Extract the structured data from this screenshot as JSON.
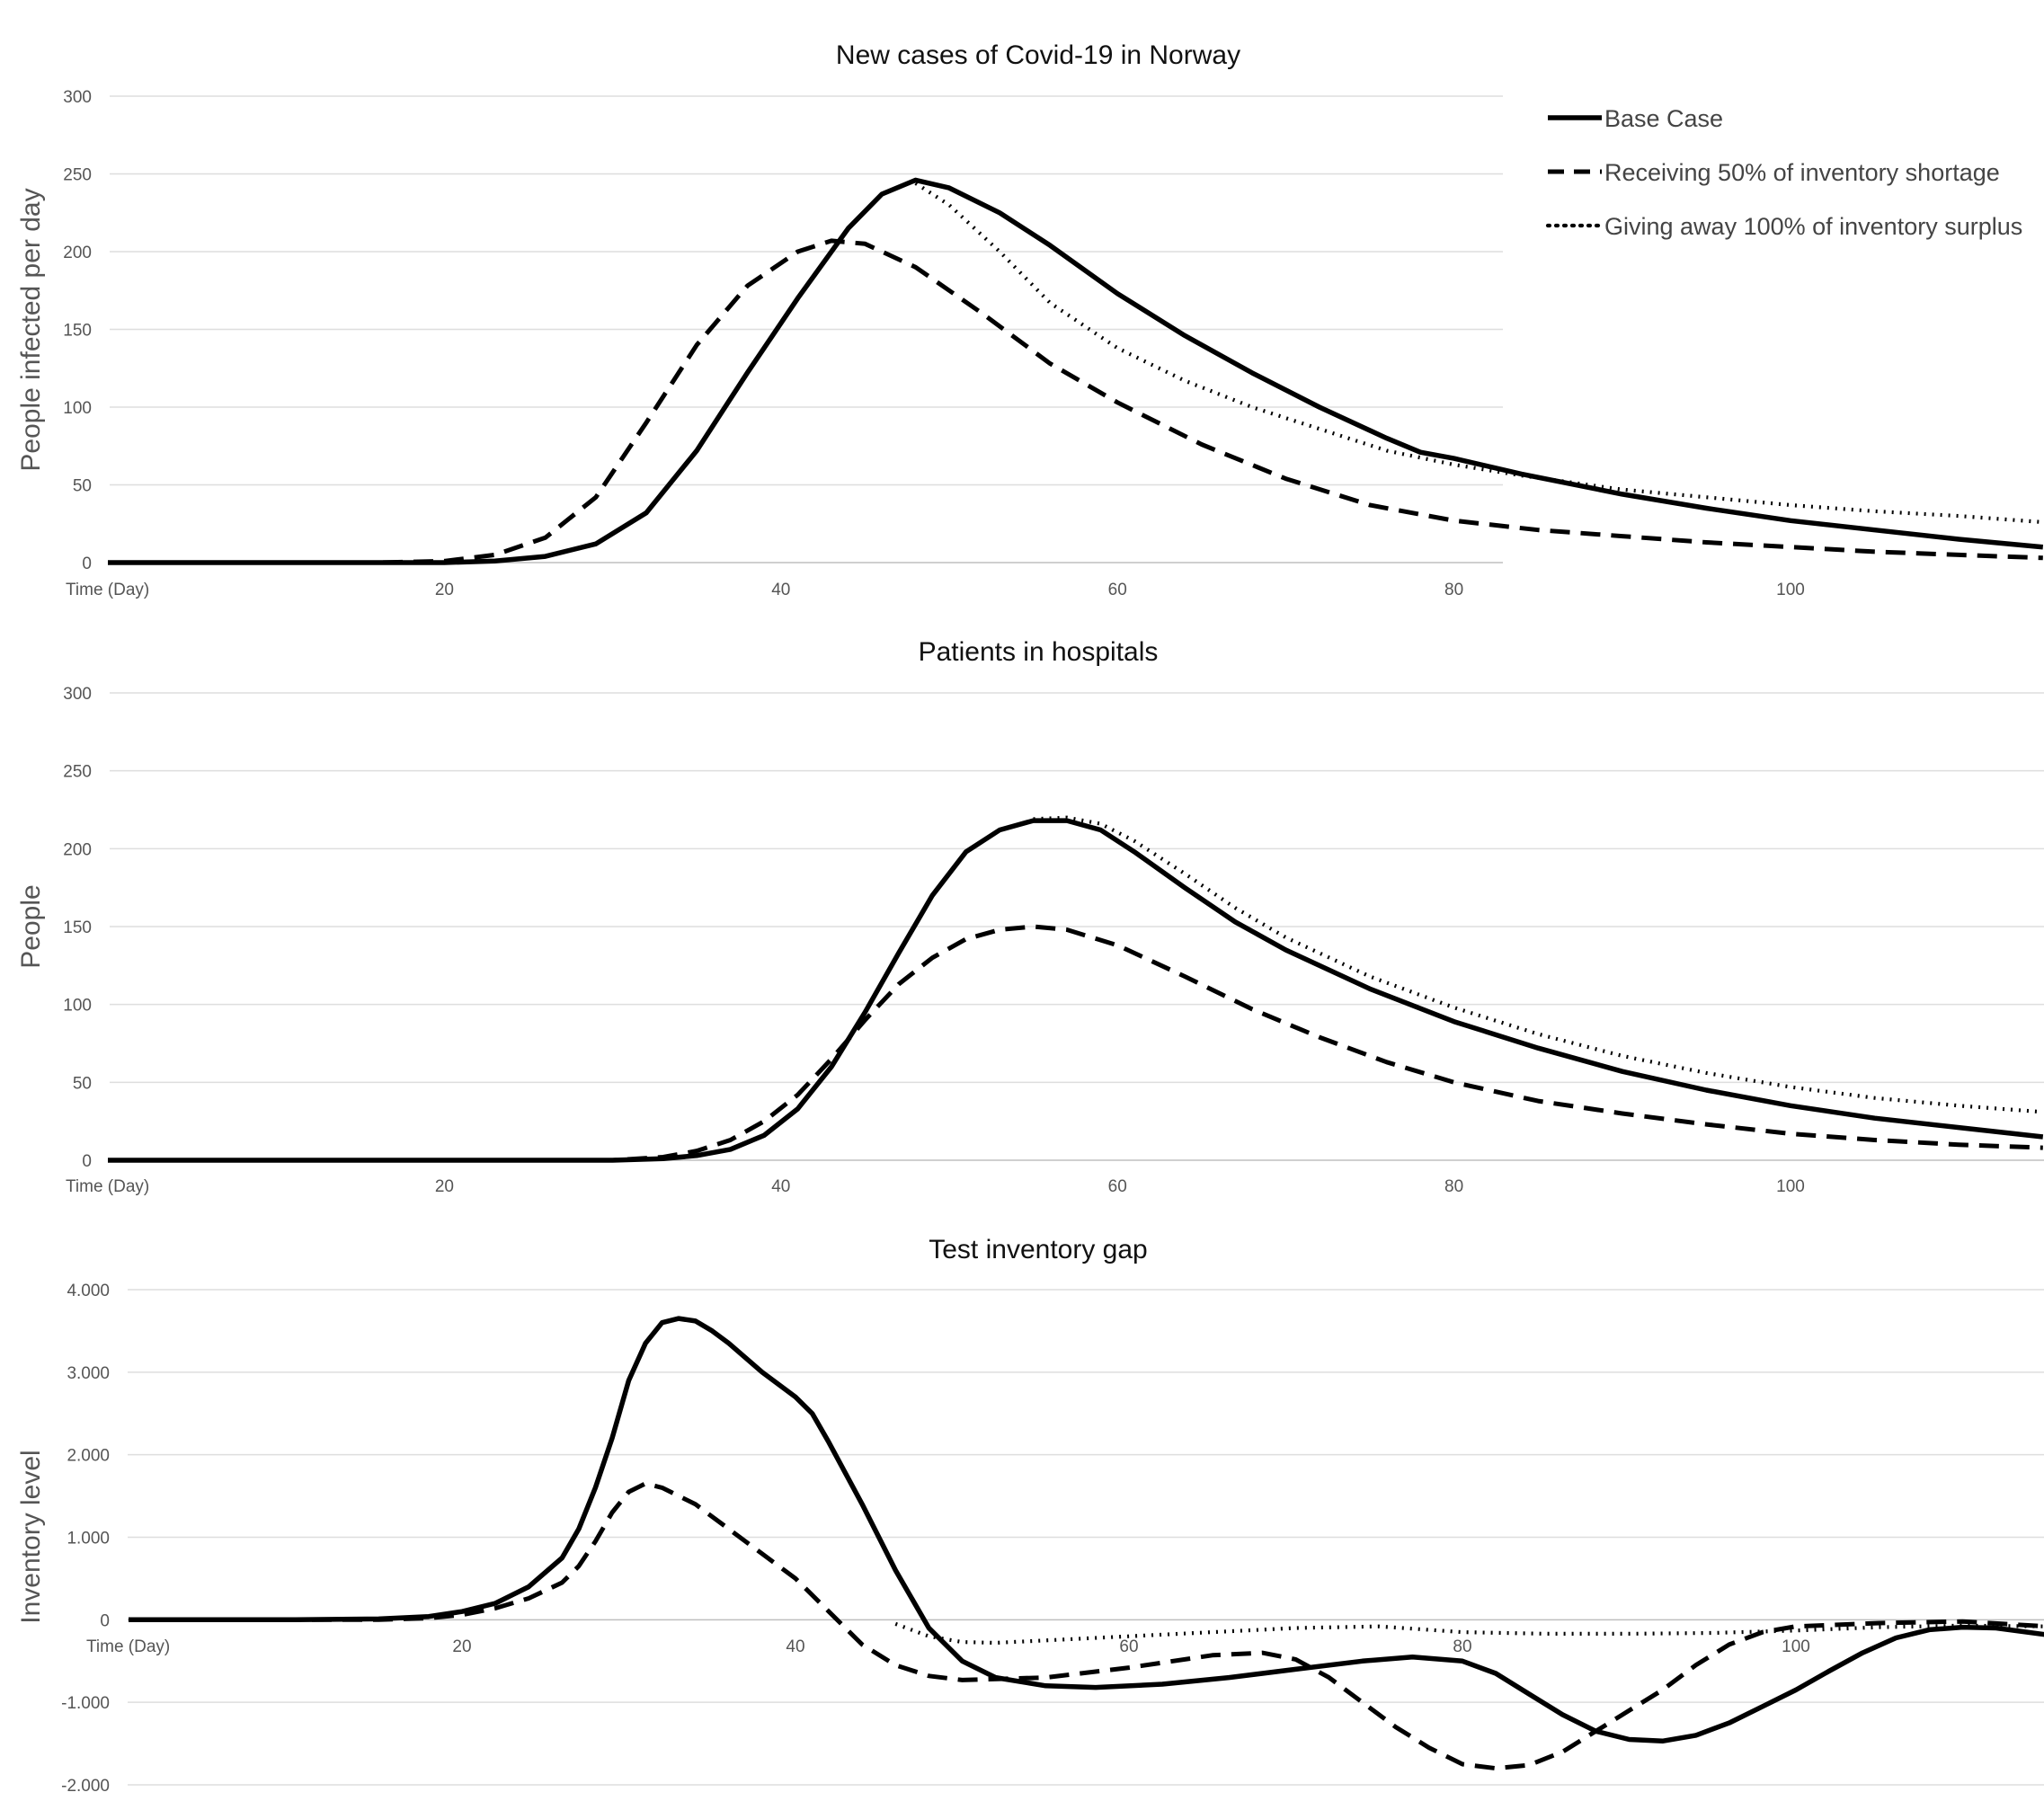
{
  "chart_data": [
    {
      "type": "line",
      "title": "New cases of Covid-19 in Norway",
      "xlabel": "Time (Day)",
      "ylabel": "People infected per day",
      "xlim": [
        0,
        115
      ],
      "ylim": [
        0,
        300
      ],
      "x_ticks": [
        "20",
        "40",
        "60",
        "80",
        "100"
      ],
      "y_ticks": [
        "0",
        "50",
        "100",
        "150",
        "200",
        "250",
        "300"
      ],
      "grid": "horizontal",
      "legend": "top-right",
      "series": [
        {
          "name": "Base Case",
          "style": "solid",
          "x": [
            0,
            20,
            23,
            26,
            29,
            32,
            35,
            38,
            41,
            44,
            46,
            48,
            50,
            53,
            56,
            60,
            64,
            68,
            72,
            76,
            78,
            80,
            84,
            90,
            95,
            100,
            105,
            110,
            115
          ],
          "y": [
            0,
            0,
            1,
            4,
            12,
            32,
            72,
            122,
            170,
            215,
            237,
            246,
            241,
            225,
            204,
            173,
            146,
            122,
            100,
            80,
            71,
            67,
            57,
            44,
            35,
            27,
            21,
            15,
            10
          ]
        },
        {
          "name": "Receiving 50% of inventory shortage",
          "style": "dashed",
          "x": [
            0,
            16,
            20,
            23,
            26,
            29,
            32,
            35,
            38,
            41,
            43,
            45,
            48,
            52,
            56,
            60,
            65,
            70,
            75,
            80,
            85,
            90,
            95,
            100,
            105,
            110,
            115
          ],
          "y": [
            0,
            0,
            1,
            5,
            16,
            42,
            90,
            140,
            178,
            200,
            207,
            205,
            190,
            160,
            128,
            103,
            76,
            54,
            37,
            27,
            21,
            17,
            13,
            10,
            7,
            5,
            3
          ]
        },
        {
          "name": "Giving away 100% of inventory surplus",
          "style": "dotted",
          "x": [
            48,
            50,
            53,
            56,
            60,
            64,
            68,
            72,
            76,
            80,
            84,
            90,
            95,
            100,
            105,
            110,
            115
          ],
          "y": [
            244,
            230,
            200,
            167,
            138,
            117,
            100,
            86,
            72,
            63,
            56,
            47,
            42,
            37,
            33,
            30,
            26
          ]
        }
      ]
    },
    {
      "type": "line",
      "title": "Patients in hospitals",
      "xlabel": "Time (Day)",
      "ylabel": "People",
      "xlim": [
        0,
        115
      ],
      "ylim": [
        0,
        300
      ],
      "x_ticks": [
        "20",
        "40",
        "60",
        "80",
        "100"
      ],
      "y_ticks": [
        "0",
        "50",
        "100",
        "150",
        "200",
        "250",
        "300"
      ],
      "grid": "horizontal",
      "series": [
        {
          "name": "Base Case",
          "style": "solid",
          "x": [
            0,
            25,
            30,
            33,
            35,
            37,
            39,
            41,
            43,
            45,
            47,
            49,
            51,
            53,
            55,
            57,
            59,
            61,
            64,
            67,
            70,
            75,
            80,
            85,
            90,
            95,
            100,
            105,
            110,
            115
          ],
          "y": [
            0,
            0,
            0,
            1,
            3,
            7,
            16,
            33,
            60,
            95,
            133,
            170,
            198,
            212,
            218,
            218,
            212,
            198,
            175,
            153,
            135,
            110,
            89,
            72,
            57,
            45,
            35,
            27,
            21,
            15
          ]
        },
        {
          "name": "Receiving 50% of inventory shortage",
          "style": "dashed",
          "x": [
            0,
            30,
            33,
            35,
            37,
            39,
            41,
            43,
            45,
            47,
            49,
            51,
            53,
            55,
            57,
            60,
            64,
            68,
            72,
            76,
            80,
            85,
            90,
            95,
            100,
            105,
            110,
            115
          ],
          "y": [
            0,
            0,
            2,
            6,
            13,
            25,
            42,
            65,
            90,
            113,
            130,
            142,
            148,
            150,
            148,
            138,
            118,
            97,
            79,
            63,
            50,
            38,
            30,
            23,
            17,
            13,
            10,
            8
          ]
        },
        {
          "name": "Giving away 100% of inventory surplus",
          "style": "dotted",
          "x": [
            55,
            57,
            59,
            61,
            64,
            67,
            70,
            75,
            80,
            85,
            90,
            95,
            100,
            105,
            110,
            115
          ],
          "y": [
            219,
            220,
            216,
            205,
            184,
            162,
            143,
            118,
            98,
            81,
            67,
            56,
            47,
            40,
            35,
            31
          ]
        }
      ]
    },
    {
      "type": "line",
      "title": "Test inventory gap",
      "xlabel": "Time (Day)",
      "ylabel": "Inventory level",
      "xlim": [
        0,
        115
      ],
      "ylim": [
        -2000,
        4000
      ],
      "x_ticks": [
        "20",
        "40",
        "60",
        "80",
        "100"
      ],
      "y_ticks": [
        "-2.000",
        "-1.000",
        "0",
        "1.000",
        "2.000",
        "3.000",
        "4.000"
      ],
      "grid": "horizontal",
      "series": [
        {
          "name": "Base Case",
          "style": "solid",
          "x": [
            0,
            10,
            15,
            18,
            20,
            22,
            24,
            26,
            27,
            28,
            29,
            30,
            31,
            32,
            33,
            34,
            35,
            36,
            38,
            40,
            41,
            42,
            44,
            46,
            48,
            50,
            52,
            55,
            58,
            62,
            66,
            70,
            74,
            77,
            80,
            82,
            84,
            86,
            88,
            90,
            92,
            94,
            96,
            98,
            100,
            102,
            104,
            106,
            108,
            110,
            112,
            115
          ],
          "y": [
            0,
            0,
            10,
            40,
            100,
            200,
            400,
            750,
            1100,
            1600,
            2200,
            2900,
            3350,
            3600,
            3650,
            3620,
            3500,
            3350,
            3000,
            2700,
            2500,
            2150,
            1400,
            600,
            -100,
            -500,
            -700,
            -800,
            -820,
            -780,
            -700,
            -600,
            -500,
            -450,
            -500,
            -650,
            -900,
            -1150,
            -1350,
            -1450,
            -1470,
            -1400,
            -1250,
            -1050,
            -850,
            -620,
            -400,
            -220,
            -120,
            -90,
            -100,
            -180
          ]
        },
        {
          "name": "Receiving 50% of inventory shortage",
          "style": "dashed",
          "x": [
            0,
            15,
            18,
            20,
            22,
            24,
            26,
            27,
            28,
            29,
            30,
            31,
            32,
            34,
            36,
            38,
            40,
            42,
            44,
            46,
            48,
            50,
            55,
            60,
            65,
            68,
            70,
            72,
            74,
            76,
            78,
            80,
            82,
            84,
            86,
            88,
            90,
            92,
            94,
            96,
            98,
            100,
            105,
            110,
            115
          ],
          "y": [
            0,
            0,
            20,
            60,
            140,
            260,
            450,
            650,
            950,
            1300,
            1550,
            1650,
            1600,
            1400,
            1100,
            800,
            500,
            100,
            -300,
            -550,
            -680,
            -730,
            -700,
            -580,
            -430,
            -400,
            -480,
            -700,
            -1000,
            -1300,
            -1550,
            -1750,
            -1800,
            -1760,
            -1600,
            -1350,
            -1100,
            -850,
            -550,
            -300,
            -150,
            -80,
            -40,
            -20,
            -80
          ]
        },
        {
          "name": "Giving away 100% of inventory surplus",
          "style": "dotted",
          "x": [
            46,
            48,
            50,
            52,
            55,
            60,
            65,
            70,
            75,
            80,
            85,
            90,
            95,
            100,
            105,
            110,
            115
          ],
          "y": [
            -50,
            -200,
            -270,
            -280,
            -250,
            -200,
            -150,
            -100,
            -80,
            -150,
            -170,
            -170,
            -160,
            -130,
            -90,
            -70,
            -80
          ]
        }
      ]
    }
  ]
}
